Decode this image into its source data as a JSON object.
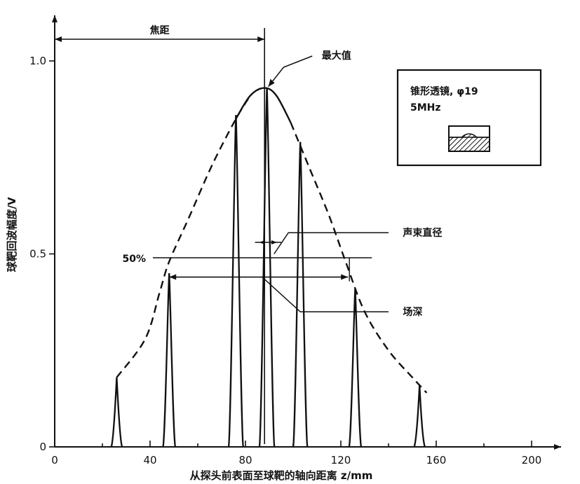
{
  "chart_data": {
    "type": "line",
    "xlabel": "从探头前表面至球靶的轴向距离 z/mm",
    "ylabel": "球靶回波幅度/V",
    "xlim": [
      0,
      210
    ],
    "ylim": [
      0,
      1.1
    ],
    "x_ticks": [
      {
        "value": 0,
        "label": "0"
      },
      {
        "value": 40,
        "label": "40"
      },
      {
        "value": 80,
        "label": "80"
      },
      {
        "value": 120,
        "label": "120"
      },
      {
        "value": 160,
        "label": "160"
      },
      {
        "value": 200,
        "label": "200"
      }
    ],
    "y_ticks": [
      {
        "value": 0,
        "label": "0"
      },
      {
        "value": 0.5,
        "label": "0.5"
      },
      {
        "value": 1.0,
        "label": "1.0"
      }
    ],
    "envelope": [
      {
        "x": 26,
        "y": 0.18
      },
      {
        "x": 38,
        "y": 0.28
      },
      {
        "x": 44,
        "y": 0.4
      },
      {
        "x": 48,
        "y": 0.48
      },
      {
        "x": 56,
        "y": 0.59
      },
      {
        "x": 66,
        "y": 0.73
      },
      {
        "x": 76,
        "y": 0.85
      },
      {
        "x": 82,
        "y": 0.91
      },
      {
        "x": 88,
        "y": 0.93
      },
      {
        "x": 93,
        "y": 0.91
      },
      {
        "x": 99,
        "y": 0.84
      },
      {
        "x": 107,
        "y": 0.72
      },
      {
        "x": 115,
        "y": 0.6
      },
      {
        "x": 122,
        "y": 0.48
      },
      {
        "x": 130,
        "y": 0.35
      },
      {
        "x": 140,
        "y": 0.25
      },
      {
        "x": 150,
        "y": 0.18
      },
      {
        "x": 156,
        "y": 0.14
      }
    ],
    "envelope_solid_range": [
      78,
      98
    ],
    "peaks": [
      {
        "x": 26,
        "y": 0.18
      },
      {
        "x": 48,
        "y": 0.45
      },
      {
        "x": 76,
        "y": 0.86
      },
      {
        "x": 89,
        "y": 0.93
      },
      {
        "x": 103,
        "y": 0.79
      },
      {
        "x": 126,
        "y": 0.41
      },
      {
        "x": 153,
        "y": 0.16
      }
    ],
    "focal_distance_x": 88,
    "half_max_level": 0.49,
    "depth_of_field_range": [
      48,
      123
    ],
    "beam_diameter_range": [
      84,
      95
    ],
    "annotations": {
      "focal_distance": "焦距",
      "max_value": "最大值",
      "beam_diameter": "声束直径",
      "depth_of_field": "场深",
      "half_level": "50%"
    },
    "legend": {
      "line1": "锥形透镜, φ19",
      "line2": "5MHz"
    }
  }
}
